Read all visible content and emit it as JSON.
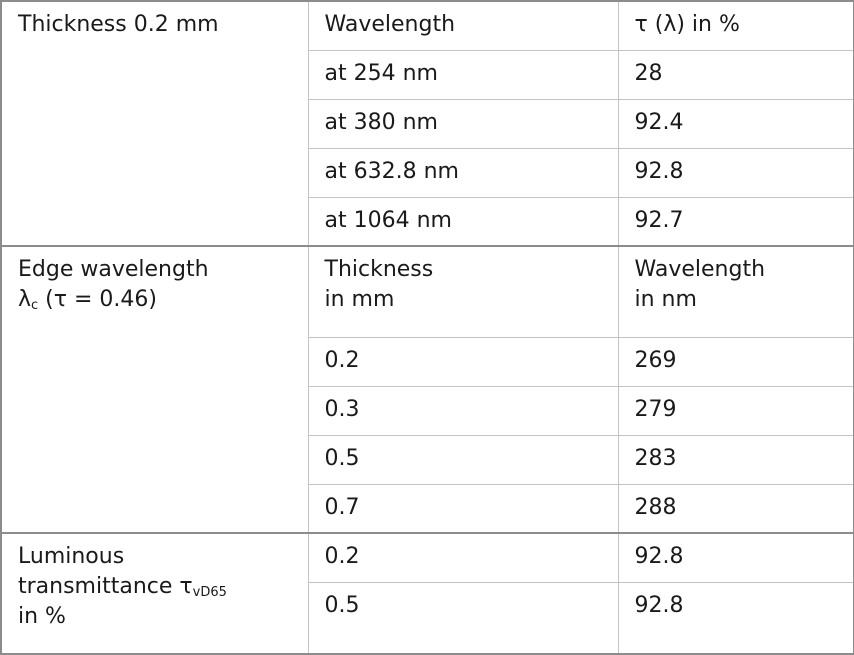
{
  "table": {
    "sections": [
      {
        "label": {
          "text": "Thickness 0.2 mm"
        },
        "header": [
          "Wavelength",
          "τ (λ) in %"
        ],
        "rows": [
          [
            "at 254 nm",
            "28"
          ],
          [
            "at 380 nm",
            "92.4"
          ],
          [
            "at 632.8 nm",
            "92.8"
          ],
          [
            "at 1064 nm",
            "92.7"
          ]
        ]
      },
      {
        "label": {
          "line1": "Edge wavelength",
          "symbol": "λ",
          "sub": "c",
          "rest": " (τ = 0.46)"
        },
        "header": [
          [
            "Thickness",
            "in mm"
          ],
          [
            "Wavelength",
            "in nm"
          ]
        ],
        "rows": [
          [
            "0.2",
            "269"
          ],
          [
            "0.3",
            "279"
          ],
          [
            "0.5",
            "283"
          ],
          [
            "0.7",
            "288"
          ]
        ]
      },
      {
        "label": {
          "line1": "Luminous",
          "line2": "transmittance τ",
          "sub": "vD65",
          "line3": "in %"
        },
        "rows": [
          [
            "0.2",
            "92.8"
          ],
          [
            "0.5",
            "92.8"
          ]
        ]
      }
    ]
  }
}
